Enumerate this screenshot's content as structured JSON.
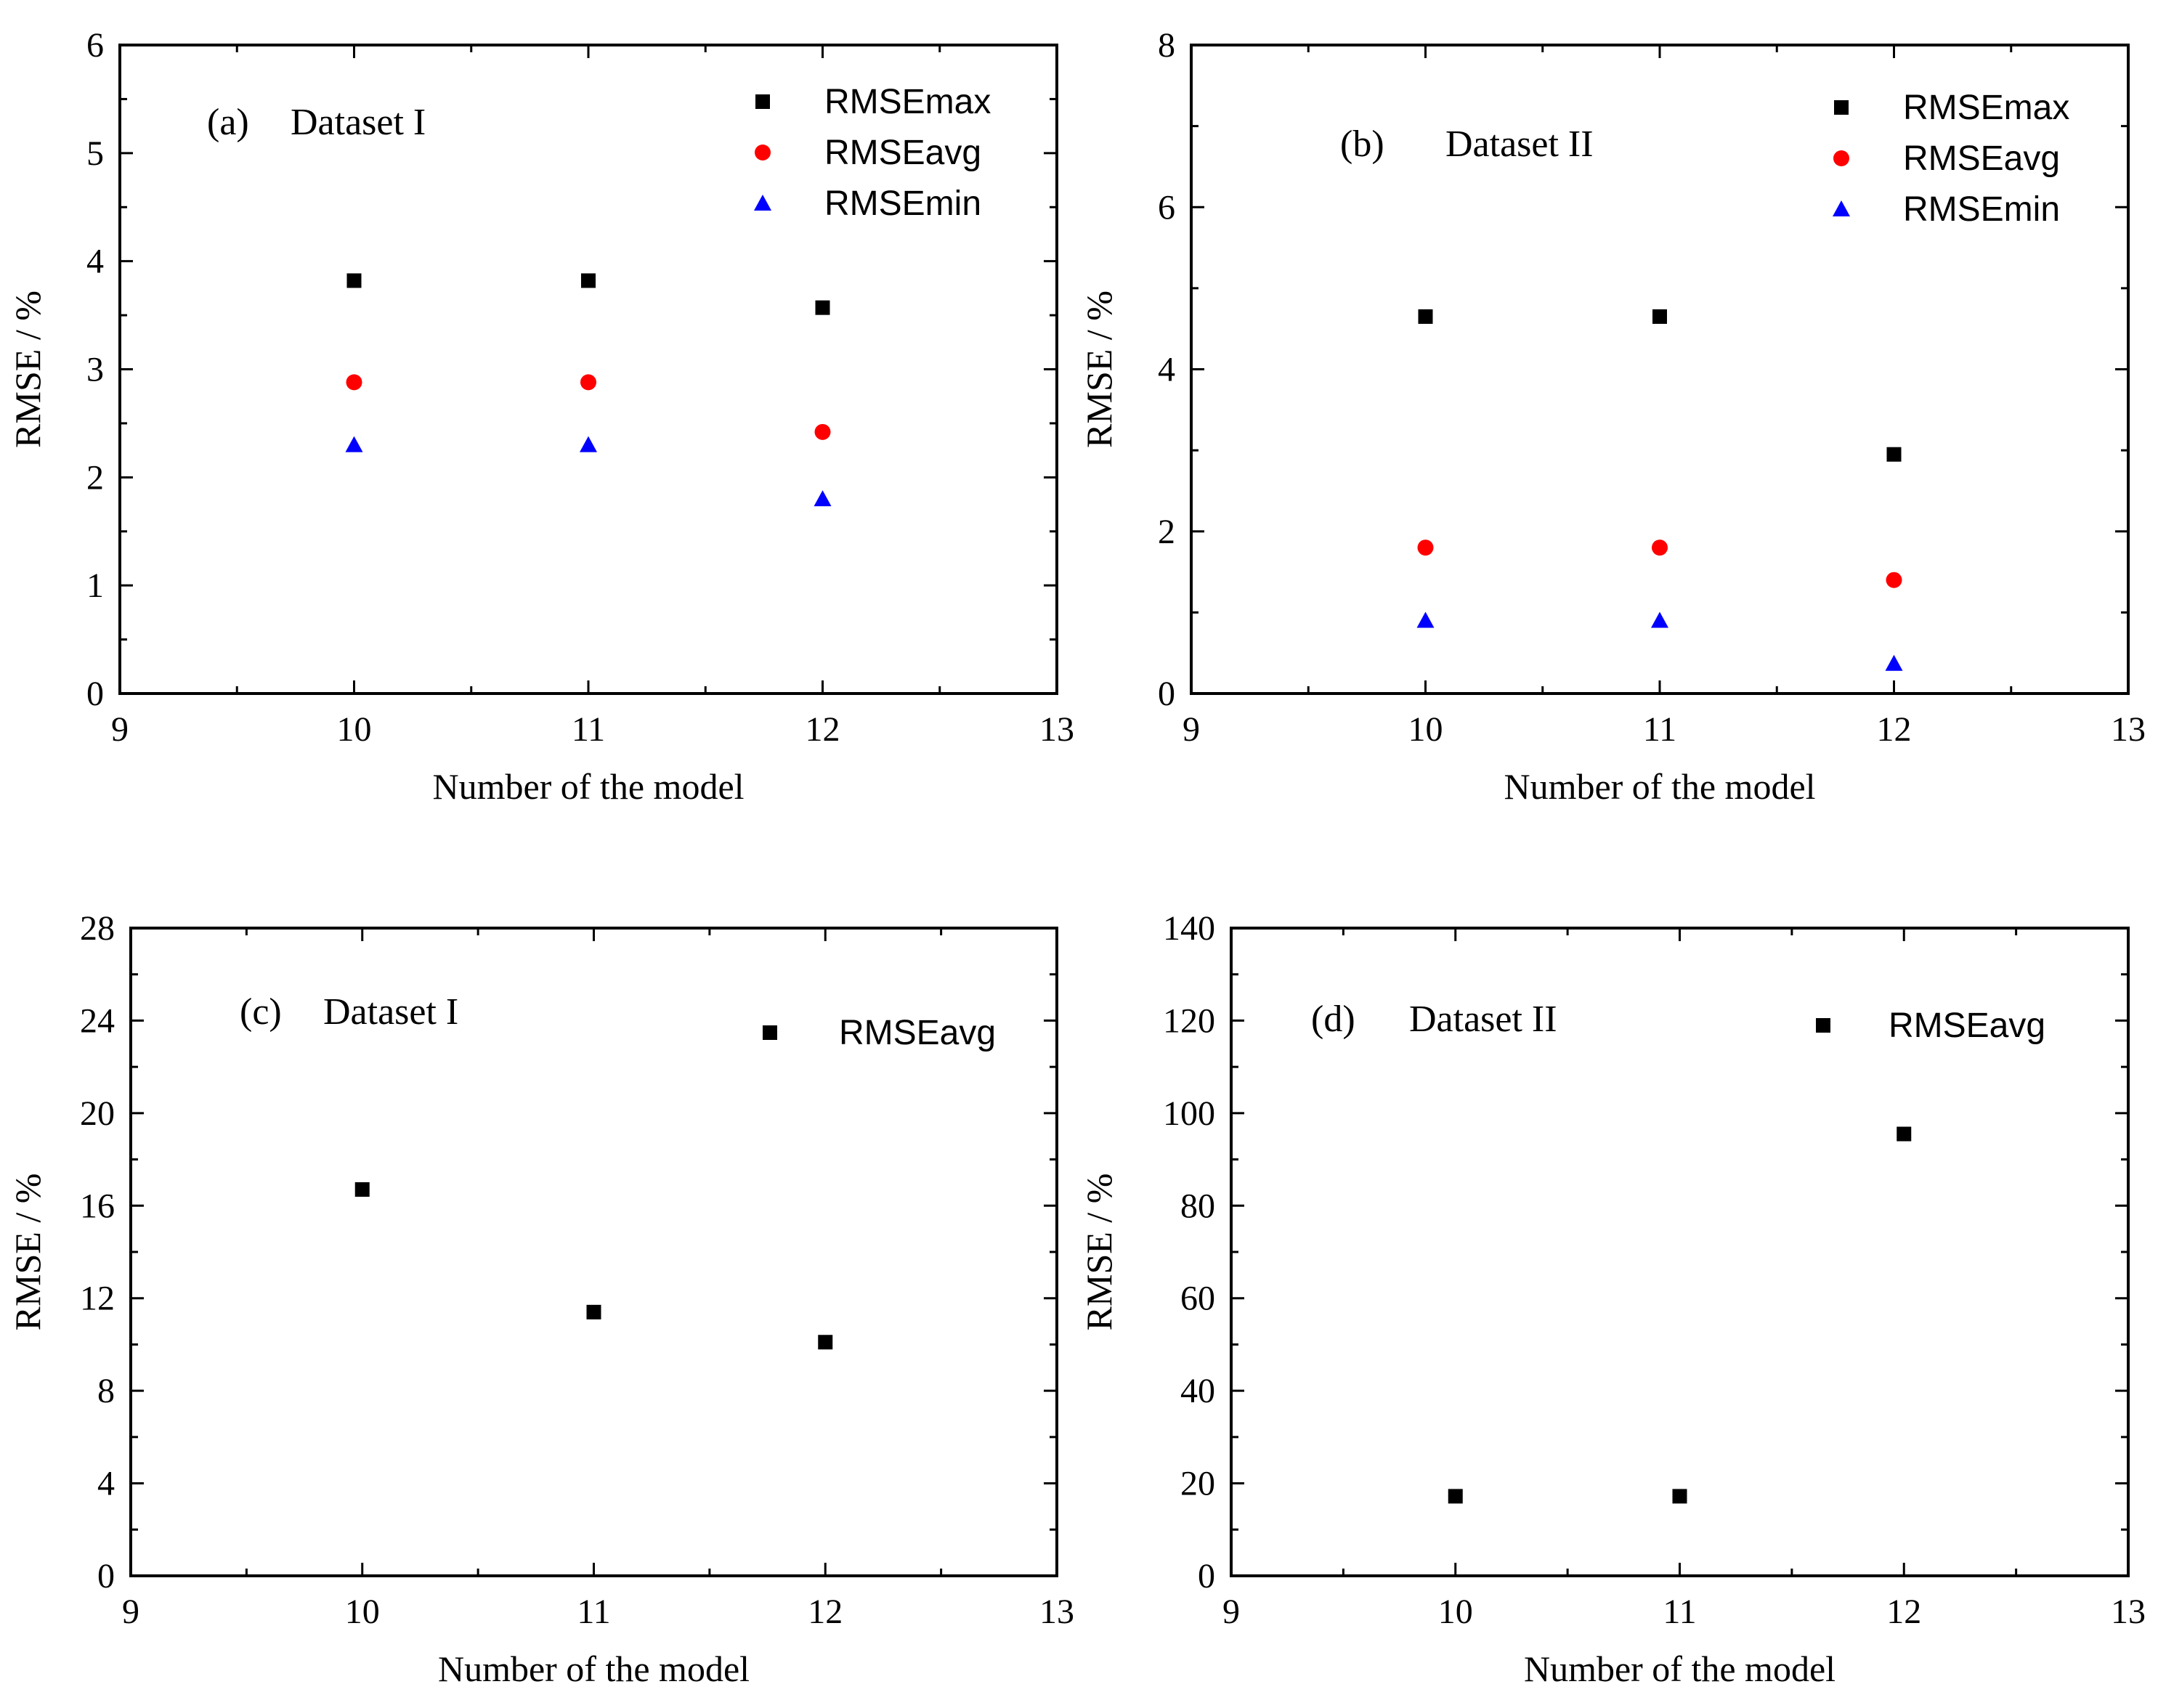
{
  "chart_data": [
    {
      "id": "a",
      "type": "scatter",
      "annotation_tag": "(a)",
      "annotation_text": "Dataset I",
      "xlabel": "Number of the model",
      "ylabel": "RMSE / %",
      "xlim": [
        9,
        13
      ],
      "ylim": [
        0,
        6
      ],
      "xticks": [
        9,
        10,
        11,
        12,
        13
      ],
      "yticks": [
        0,
        1,
        2,
        3,
        4,
        5,
        6
      ],
      "legend_position": "top-right",
      "series": [
        {
          "name": "RMSEmax",
          "marker": "square",
          "color": "#000000",
          "x": [
            10,
            11,
            12
          ],
          "y": [
            3.82,
            3.82,
            3.57
          ]
        },
        {
          "name": "RMSEavg",
          "marker": "circle",
          "color": "#ff0000",
          "x": [
            10,
            11,
            12
          ],
          "y": [
            2.88,
            2.88,
            2.42
          ]
        },
        {
          "name": "RMSEmin",
          "marker": "triangle",
          "color": "#0000ff",
          "x": [
            10,
            11,
            12
          ],
          "y": [
            2.3,
            2.3,
            1.8
          ]
        }
      ]
    },
    {
      "id": "b",
      "type": "scatter",
      "annotation_tag": "(b)",
      "annotation_text": "Dataset II",
      "xlabel": "Number of the model",
      "ylabel": "RMSE / %",
      "xlim": [
        9,
        13
      ],
      "ylim": [
        0,
        8
      ],
      "xticks": [
        9,
        10,
        11,
        12,
        13
      ],
      "yticks": [
        0,
        2,
        4,
        6,
        8
      ],
      "legend_position": "top-right",
      "series": [
        {
          "name": "RMSEmax",
          "marker": "square",
          "color": "#000000",
          "x": [
            10,
            11,
            12
          ],
          "y": [
            4.65,
            4.65,
            2.95
          ]
        },
        {
          "name": "RMSEavg",
          "marker": "circle",
          "color": "#ff0000",
          "x": [
            10,
            11,
            12
          ],
          "y": [
            1.8,
            1.8,
            1.4
          ]
        },
        {
          "name": "RMSEmin",
          "marker": "triangle",
          "color": "#0000ff",
          "x": [
            10,
            11,
            12
          ],
          "y": [
            0.9,
            0.9,
            0.37
          ]
        }
      ]
    },
    {
      "id": "c",
      "type": "scatter",
      "annotation_tag": "(c)",
      "annotation_text": "Dataset I",
      "xlabel": "Number of the model",
      "ylabel": "RMSE / %",
      "xlim": [
        9,
        13
      ],
      "ylim": [
        0,
        28
      ],
      "xticks": [
        9,
        10,
        11,
        12,
        13
      ],
      "yticks": [
        0,
        4,
        8,
        12,
        16,
        20,
        24,
        28
      ],
      "legend_position": "top-right",
      "series": [
        {
          "name": "RMSEavg",
          "marker": "square",
          "color": "#000000",
          "x": [
            10,
            11,
            12
          ],
          "y": [
            16.7,
            11.4,
            10.1
          ]
        }
      ]
    },
    {
      "id": "d",
      "type": "scatter",
      "annotation_tag": "(d)",
      "annotation_text": "Dataset II",
      "xlabel": "Number of the model",
      "ylabel": "RMSE / %",
      "xlim": [
        9,
        13
      ],
      "ylim": [
        0,
        140
      ],
      "xticks": [
        9,
        10,
        11,
        12,
        13
      ],
      "yticks": [
        0,
        20,
        40,
        60,
        80,
        100,
        120,
        140
      ],
      "legend_position": "top-right",
      "series": [
        {
          "name": "RMSEavg",
          "marker": "square",
          "color": "#000000",
          "x": [
            10,
            11,
            12
          ],
          "y": [
            17.2,
            17.2,
            95.5
          ]
        }
      ]
    }
  ]
}
